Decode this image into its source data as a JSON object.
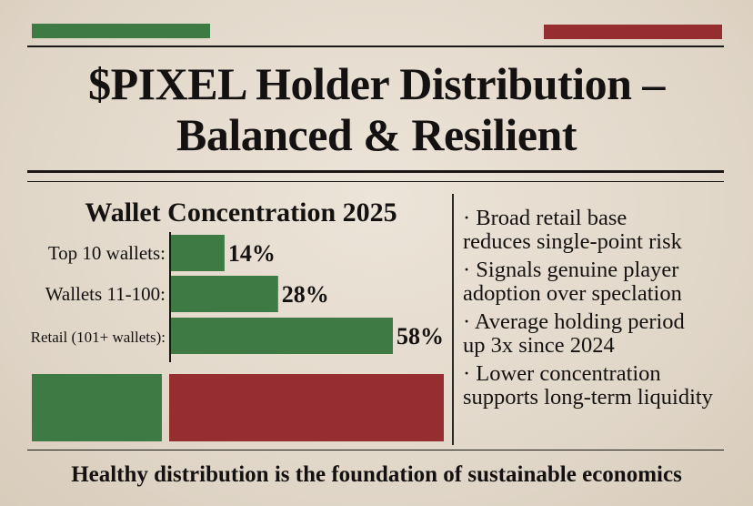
{
  "title": {
    "line1": "$PIXEL Holder Distribution –",
    "line2": "Balanced & Resilient"
  },
  "colors": {
    "green": "#3e7a43",
    "red": "#962d30",
    "ink": "#141210",
    "paper": "#e6ddd0"
  },
  "chart_data": {
    "type": "bar",
    "orientation": "horizontal",
    "title": "Wallet Concentration 2025",
    "categories": [
      "Top 10 wallets:",
      "Wallets 11-100:",
      "Retail (101+ wallets):"
    ],
    "values": [
      14,
      28,
      58
    ],
    "data_labels": [
      "14%",
      "28%",
      "58%"
    ],
    "unit": "%",
    "xlim": [
      0,
      58
    ],
    "grid": false
  },
  "bullets": [
    {
      "line1": "· Broad retail base",
      "line2": "reduces single-point risk"
    },
    {
      "line1": "· Signals genuine player",
      "line2": "adoption over speclation"
    },
    {
      "line1": "· Average holding period",
      "line2": "up 3x since 2024"
    },
    {
      "line1": "· Lower concentration",
      "line2": "supports long-term liquidity"
    }
  ],
  "footer": "Healthy distribution is the foundation of sustainable economics"
}
